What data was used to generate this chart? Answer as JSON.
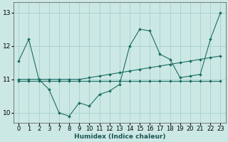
{
  "xlabel": "Humidex (Indice chaleur)",
  "background_color": "#cce8e4",
  "grid_color": "#aad4d0",
  "line_color": "#1a6e64",
  "ylim": [
    9.7,
    13.3
  ],
  "yticks": [
    10,
    11,
    12,
    13
  ],
  "tick_labels": [
    "0",
    "1",
    "2",
    "3",
    "7",
    "8",
    "9",
    "10",
    "11",
    "12",
    "13",
    "14",
    "15",
    "16",
    "17",
    "18",
    "19",
    "20",
    "21",
    "22",
    "23"
  ],
  "series": [
    {
      "y": [
        11.55,
        12.2,
        11.0,
        10.7,
        10.0,
        9.9,
        10.3,
        10.2,
        10.55,
        10.65,
        10.85,
        12.0,
        12.5,
        12.45,
        11.75,
        11.6,
        11.05,
        11.1,
        11.15,
        12.2,
        13.0
      ]
    },
    {
      "y": [
        11.0,
        11.0,
        11.0,
        11.0,
        11.0,
        11.0,
        11.0,
        11.05,
        11.1,
        11.15,
        11.2,
        11.25,
        11.3,
        11.35,
        11.4,
        11.45,
        11.5,
        11.55,
        11.6,
        11.65,
        11.7
      ]
    },
    {
      "y": [
        10.95,
        10.95,
        10.95,
        10.95,
        10.95,
        10.95,
        10.95,
        10.95,
        10.95,
        10.95,
        10.95,
        10.95,
        10.95,
        10.95,
        10.95,
        10.95,
        10.95,
        10.95,
        10.95,
        10.95,
        10.95
      ]
    }
  ]
}
